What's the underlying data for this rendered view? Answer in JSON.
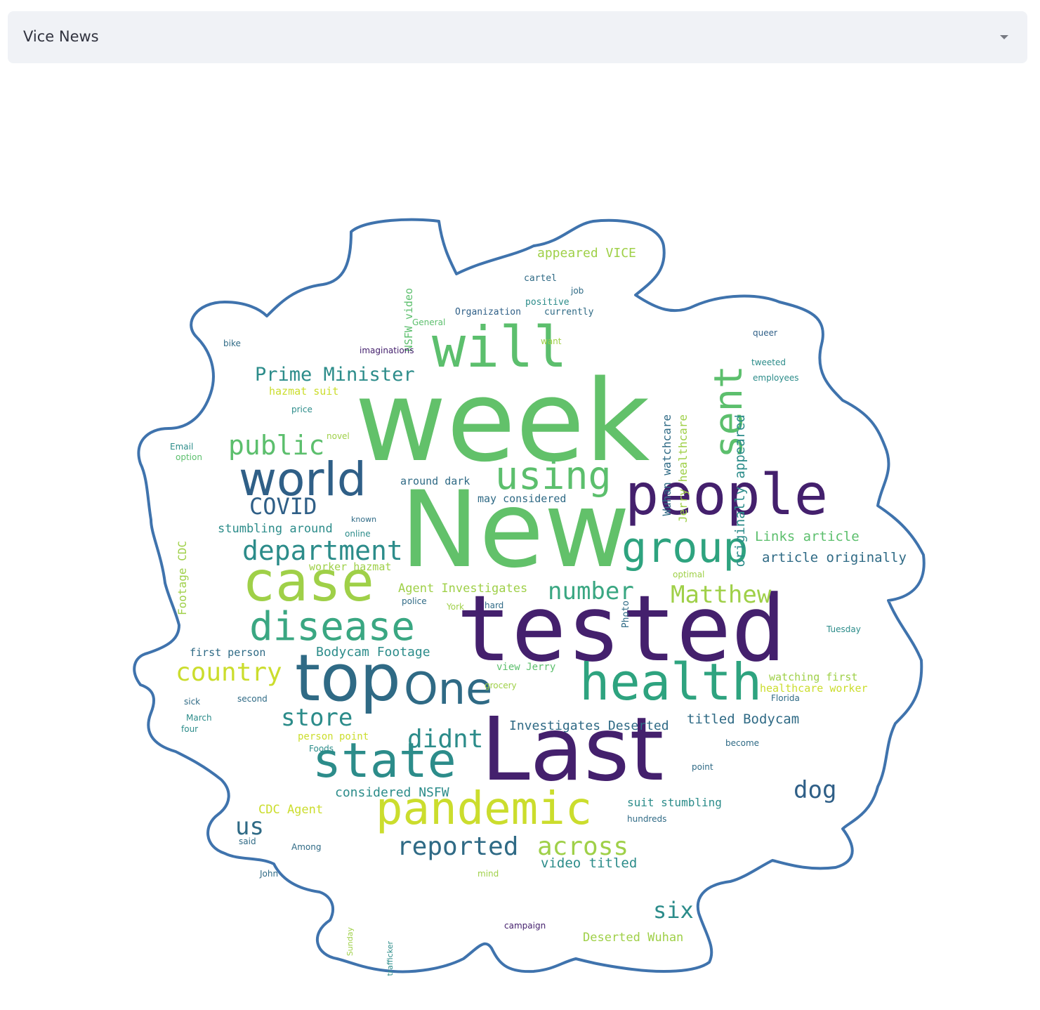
{
  "selector": {
    "selected_value": "Vice News",
    "icon": "chevron-down-icon"
  },
  "wordcloud": {
    "colors": {
      "outline": "#3f73ad",
      "dark_purple": "#44206d",
      "teal_dark": "#2f6a85",
      "teal": "#2c8c8a",
      "green": "#5cbf6d",
      "light_green": "#9fd048",
      "yellow": "#cbdd2d"
    },
    "words": [
      {
        "text": "week",
        "color": "#62c16a"
      },
      {
        "text": "New",
        "color": "#62c16a"
      },
      {
        "text": "tested",
        "color": "#44206d"
      },
      {
        "text": "Last",
        "color": "#44206d"
      },
      {
        "text": "people",
        "color": "#44206d"
      },
      {
        "text": "top",
        "color": "#2f6a85"
      },
      {
        "text": "One",
        "color": "#2f6a85"
      },
      {
        "text": "health",
        "color": "#2ea37f"
      },
      {
        "text": "case",
        "color": "#9fd048"
      },
      {
        "text": "will",
        "color": "#5cbf6d"
      },
      {
        "text": "world",
        "color": "#2f5f87"
      },
      {
        "text": "pandemic",
        "color": "#cbdd2d"
      },
      {
        "text": "state",
        "color": "#2c8c8a"
      },
      {
        "text": "group",
        "color": "#2ea37f"
      },
      {
        "text": "using",
        "color": "#5cbf6d"
      },
      {
        "text": "sent",
        "color": "#5cbf6d"
      },
      {
        "text": "disease",
        "color": "#3aa782"
      },
      {
        "text": "department",
        "color": "#2c8c8a"
      },
      {
        "text": "public",
        "color": "#5cbf6d"
      },
      {
        "text": "COVID",
        "color": "#2f5f87"
      },
      {
        "text": "store",
        "color": "#2c8c8a"
      },
      {
        "text": "didnt",
        "color": "#2c8c8a"
      },
      {
        "text": "country",
        "color": "#cbdd2d"
      },
      {
        "text": "number",
        "color": "#3aa782"
      },
      {
        "text": "Matthew",
        "color": "#9fd048"
      },
      {
        "text": "Prime Minister",
        "color": "#2c8c8a"
      },
      {
        "text": "reported",
        "color": "#2f6a85"
      },
      {
        "text": "across",
        "color": "#9fd048"
      },
      {
        "text": "dog",
        "color": "#2f5f87"
      },
      {
        "text": "six",
        "color": "#2c8c8a"
      },
      {
        "text": "us",
        "color": "#2f6a85"
      },
      {
        "text": "originally appeared",
        "color": "#2c8c8a"
      },
      {
        "text": "Jerry healthcare",
        "color": "#9fd048"
      },
      {
        "text": "Wuhan watchcare",
        "color": "#2f6a85"
      },
      {
        "text": "article originally",
        "color": "#2f6a85"
      },
      {
        "text": "Links article",
        "color": "#5cbf6d"
      },
      {
        "text": "titled Bodycam",
        "color": "#2f6a85"
      },
      {
        "text": "Investigates Deserted",
        "color": "#2f6a85"
      },
      {
        "text": "considered NSFW",
        "color": "#2c8c8a"
      },
      {
        "text": "suit stumbling",
        "color": "#2c8c8a"
      },
      {
        "text": "video titled",
        "color": "#2c8c8a"
      },
      {
        "text": "Deserted Wuhan",
        "color": "#9fd048"
      },
      {
        "text": "CDC Agent",
        "color": "#cbdd2d"
      },
      {
        "text": "Agent Investigates",
        "color": "#9fd048"
      },
      {
        "text": "Bodycam Footage",
        "color": "#2c8c8a"
      },
      {
        "text": "stumbling around",
        "color": "#2c8c8a"
      },
      {
        "text": "worker hazmat",
        "color": "#9fd048"
      },
      {
        "text": "hazmat suit",
        "color": "#cbdd2d"
      },
      {
        "text": "appeared VICE",
        "color": "#9fd048"
      },
      {
        "text": "NSFW video",
        "color": "#5cbf6d"
      },
      {
        "text": "Footage CDC",
        "color": "#9fd048"
      },
      {
        "text": "watching first",
        "color": "#9fd048"
      },
      {
        "text": "healthcare worker",
        "color": "#cbdd2d"
      },
      {
        "text": "first person",
        "color": "#2f6a85"
      },
      {
        "text": "person point",
        "color": "#cbdd2d"
      },
      {
        "text": "may considered",
        "color": "#2f6a85"
      },
      {
        "text": "around dark",
        "color": "#2f6a85"
      },
      {
        "text": "view Jerry",
        "color": "#5cbf6d"
      },
      {
        "text": "Photo",
        "color": "#2f6a85"
      },
      {
        "text": "Organization",
        "color": "#2f5f87"
      },
      {
        "text": "currently",
        "color": "#2f6a85"
      },
      {
        "text": "positive",
        "color": "#2c8c8a"
      },
      {
        "text": "cartel",
        "color": "#2f6a85"
      },
      {
        "text": "imaginations",
        "color": "#44206d"
      },
      {
        "text": "employees",
        "color": "#2c8c8a"
      },
      {
        "text": "tweeted",
        "color": "#2c8c8a"
      },
      {
        "text": "queer",
        "color": "#2f5f87"
      },
      {
        "text": "Tuesday",
        "color": "#2c8c8a"
      },
      {
        "text": "Florida",
        "color": "#2f6a85"
      },
      {
        "text": "Email",
        "color": "#2c8c8a"
      },
      {
        "text": "option",
        "color": "#5cbf6d"
      },
      {
        "text": "novel",
        "color": "#9fd048"
      },
      {
        "text": "price",
        "color": "#2c8c8a"
      },
      {
        "text": "bike",
        "color": "#2f6a85"
      },
      {
        "text": "sick",
        "color": "#2f6a85"
      },
      {
        "text": "second",
        "color": "#2f6a85"
      },
      {
        "text": "March",
        "color": "#2c8c8a"
      },
      {
        "text": "four",
        "color": "#2c8c8a"
      },
      {
        "text": "said",
        "color": "#2f6a85"
      },
      {
        "text": "John",
        "color": "#2f6a85"
      },
      {
        "text": "Among",
        "color": "#2f6a85"
      },
      {
        "text": "hundreds",
        "color": "#2f6a85"
      },
      {
        "text": "campaign",
        "color": "#44206d"
      },
      {
        "text": "Foods",
        "color": "#2c8c8a"
      },
      {
        "text": "point",
        "color": "#2f6a85"
      },
      {
        "text": "become",
        "color": "#2f6a85"
      },
      {
        "text": "grocery",
        "color": "#9fd048"
      },
      {
        "text": "Sunday",
        "color": "#9fd048"
      },
      {
        "text": "trafficker",
        "color": "#2c8c8a"
      },
      {
        "text": "mind",
        "color": "#9fd048"
      },
      {
        "text": "police",
        "color": "#2f6a85"
      },
      {
        "text": "online",
        "color": "#2c8c8a"
      },
      {
        "text": "known",
        "color": "#2f6a85"
      },
      {
        "text": "York",
        "color": "#9fd048"
      },
      {
        "text": "hard",
        "color": "#2f6a85"
      },
      {
        "text": "optimal",
        "color": "#9fd048"
      },
      {
        "text": "job",
        "color": "#2f6a85"
      },
      {
        "text": "want",
        "color": "#9fd048"
      },
      {
        "text": "General",
        "color": "#5cbf6d"
      }
    ]
  }
}
